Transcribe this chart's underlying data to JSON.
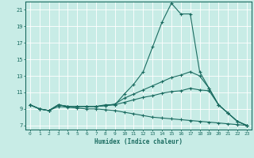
{
  "title": "",
  "xlabel": "Humidex (Indice chaleur)",
  "ylabel": "",
  "bg_color": "#c8ece6",
  "line_color": "#1a6b60",
  "grid_color": "#ffffff",
  "xlim": [
    -0.5,
    23.5
  ],
  "ylim": [
    6.5,
    22.0
  ],
  "yticks": [
    7,
    9,
    11,
    13,
    15,
    17,
    19,
    21
  ],
  "xticks": [
    0,
    1,
    2,
    3,
    4,
    5,
    6,
    7,
    8,
    9,
    10,
    11,
    12,
    13,
    14,
    15,
    16,
    17,
    18,
    19,
    20,
    21,
    22,
    23
  ],
  "line1_x": [
    0,
    1,
    2,
    3,
    4,
    5,
    6,
    7,
    8,
    9,
    10,
    11,
    12,
    13,
    14,
    15,
    16,
    17,
    18,
    19,
    20,
    21,
    22,
    23
  ],
  "line1_y": [
    9.5,
    9.0,
    8.8,
    9.5,
    9.3,
    9.3,
    9.3,
    9.3,
    9.5,
    9.5,
    10.8,
    12.0,
    13.5,
    16.5,
    19.5,
    21.8,
    20.5,
    20.5,
    13.5,
    11.5,
    9.5,
    8.5,
    7.5,
    7.0
  ],
  "line2_x": [
    0,
    1,
    2,
    3,
    4,
    5,
    6,
    7,
    8,
    9,
    10,
    11,
    12,
    13,
    14,
    15,
    16,
    17,
    18,
    19,
    20,
    21,
    22,
    23
  ],
  "line2_y": [
    9.5,
    9.0,
    8.8,
    9.5,
    9.3,
    9.3,
    9.3,
    9.3,
    9.4,
    9.6,
    10.3,
    10.8,
    11.3,
    11.8,
    12.3,
    12.8,
    13.1,
    13.5,
    13.0,
    11.5,
    9.5,
    8.5,
    7.5,
    7.0
  ],
  "line3_x": [
    0,
    1,
    2,
    3,
    4,
    5,
    6,
    7,
    8,
    9,
    10,
    11,
    12,
    13,
    14,
    15,
    16,
    17,
    18,
    19,
    20,
    21,
    22,
    23
  ],
  "line3_y": [
    9.5,
    9.0,
    8.8,
    9.5,
    9.3,
    9.3,
    9.3,
    9.3,
    9.4,
    9.5,
    9.8,
    10.1,
    10.4,
    10.6,
    10.9,
    11.1,
    11.2,
    11.5,
    11.3,
    11.2,
    9.5,
    8.5,
    7.5,
    7.0
  ],
  "line4_x": [
    0,
    1,
    2,
    3,
    4,
    5,
    6,
    7,
    8,
    9,
    10,
    11,
    12,
    13,
    14,
    15,
    16,
    17,
    18,
    19,
    20,
    21,
    22,
    23
  ],
  "line4_y": [
    9.5,
    9.0,
    8.8,
    9.3,
    9.2,
    9.1,
    9.0,
    9.0,
    8.9,
    8.8,
    8.6,
    8.4,
    8.2,
    8.0,
    7.9,
    7.8,
    7.7,
    7.6,
    7.5,
    7.4,
    7.3,
    7.2,
    7.1,
    7.0
  ]
}
